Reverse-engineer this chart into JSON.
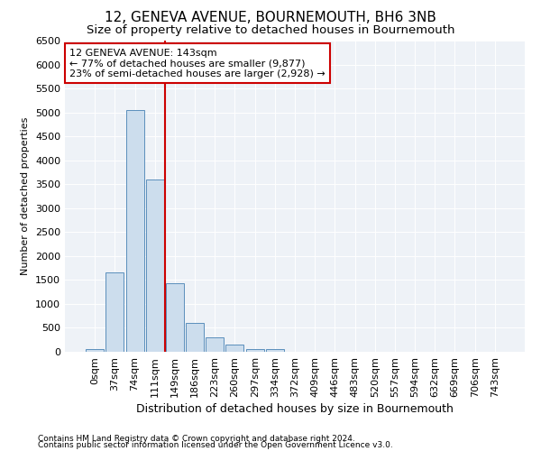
{
  "title": "12, GENEVA AVENUE, BOURNEMOUTH, BH6 3NB",
  "subtitle": "Size of property relative to detached houses in Bournemouth",
  "xlabel": "Distribution of detached houses by size in Bournemouth",
  "ylabel": "Number of detached properties",
  "footnote1": "Contains HM Land Registry data © Crown copyright and database right 2024.",
  "footnote2": "Contains public sector information licensed under the Open Government Licence v3.0.",
  "bar_labels": [
    "0sqm",
    "37sqm",
    "74sqm",
    "111sqm",
    "149sqm",
    "186sqm",
    "223sqm",
    "260sqm",
    "297sqm",
    "334sqm",
    "372sqm",
    "409sqm",
    "446sqm",
    "483sqm",
    "520sqm",
    "557sqm",
    "594sqm",
    "632sqm",
    "669sqm",
    "706sqm",
    "743sqm"
  ],
  "bar_values": [
    50,
    1650,
    5050,
    3600,
    1430,
    600,
    300,
    150,
    50,
    50,
    0,
    0,
    0,
    0,
    0,
    0,
    0,
    0,
    0,
    0,
    0
  ],
  "bar_color": "#ccdded",
  "bar_edge_color": "#5a8fbc",
  "vline_color": "#cc0000",
  "annotation_title": "12 GENEVA AVENUE: 143sqm",
  "annotation_line1": "← 77% of detached houses are smaller (9,877)",
  "annotation_line2": "23% of semi-detached houses are larger (2,928) →",
  "annotation_box_color": "#cc0000",
  "ylim": [
    0,
    6500
  ],
  "yticks": [
    0,
    500,
    1000,
    1500,
    2000,
    2500,
    3000,
    3500,
    4000,
    4500,
    5000,
    5500,
    6000,
    6500
  ],
  "background_color": "#eef2f7",
  "title_fontsize": 11,
  "subtitle_fontsize": 9.5,
  "xlabel_fontsize": 9,
  "ylabel_fontsize": 8,
  "tick_fontsize": 8,
  "annotation_fontsize": 8,
  "footnote_fontsize": 6.5
}
